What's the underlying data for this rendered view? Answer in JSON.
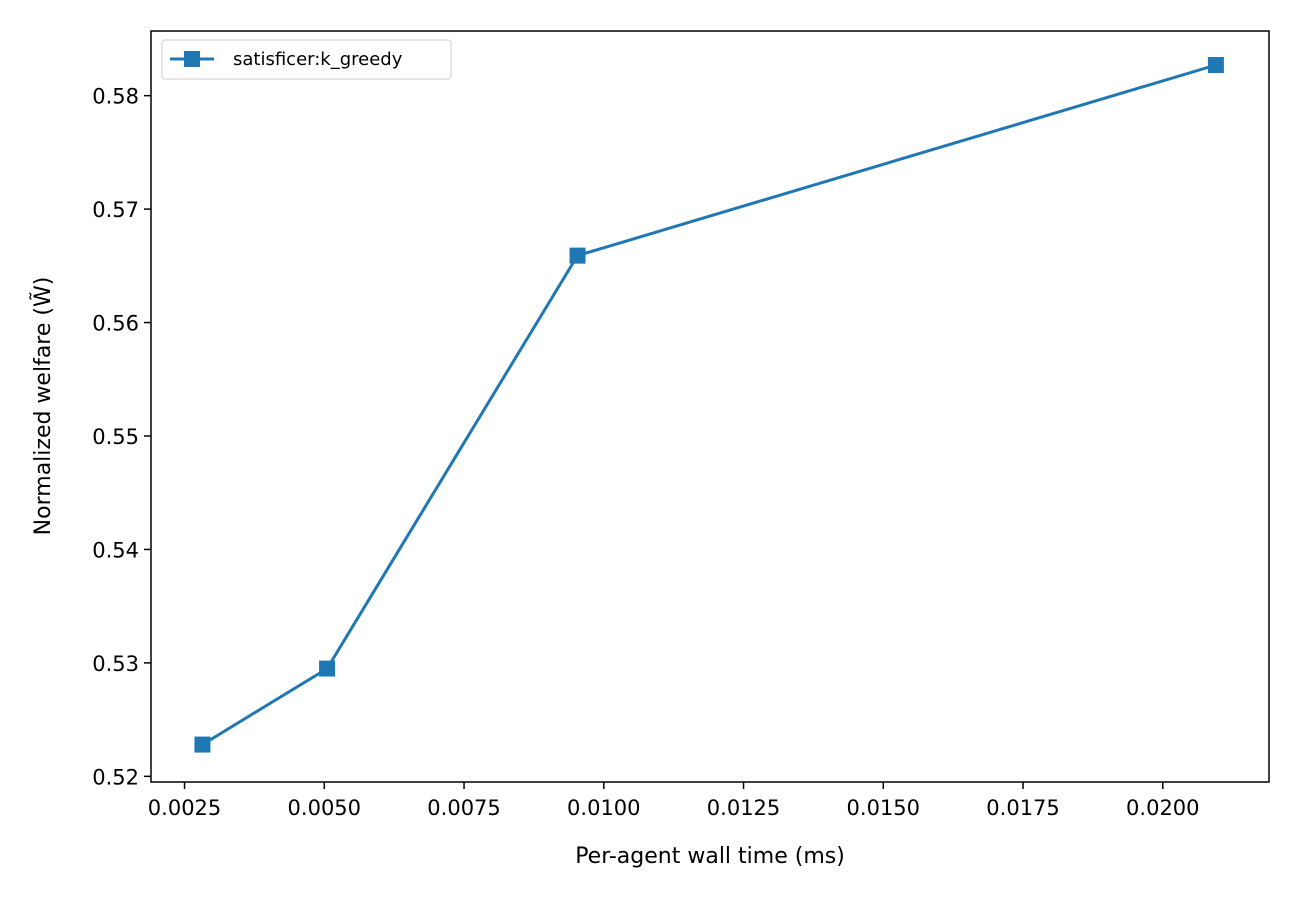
{
  "chart_data": {
    "type": "line",
    "title": "",
    "xlabel": "Per-agent wall time (ms)",
    "ylabel": "Normalized welfare (W̃)",
    "xlim": [
      0.0019,
      0.0219
    ],
    "ylim": [
      0.5195,
      0.5857
    ],
    "xticks": [
      0.0025,
      0.005,
      0.0075,
      0.01,
      0.0125,
      0.015,
      0.0175,
      0.02
    ],
    "xtick_labels": [
      "0.0025",
      "0.0050",
      "0.0075",
      "0.0100",
      "0.0125",
      "0.0150",
      "0.0175",
      "0.0200"
    ],
    "yticks": [
      0.52,
      0.53,
      0.54,
      0.55,
      0.56,
      0.57,
      0.58
    ],
    "ytick_labels": [
      "0.52",
      "0.53",
      "0.54",
      "0.55",
      "0.56",
      "0.57",
      "0.58"
    ],
    "grid": false,
    "legend_position": "top-left",
    "series": [
      {
        "name": "satisficer:k_greedy",
        "color": "#1f77b4",
        "marker": "square",
        "x": [
          0.00282,
          0.00505,
          0.00953,
          0.02095
        ],
        "y": [
          0.5228,
          0.5295,
          0.5659,
          0.5827
        ]
      }
    ]
  }
}
